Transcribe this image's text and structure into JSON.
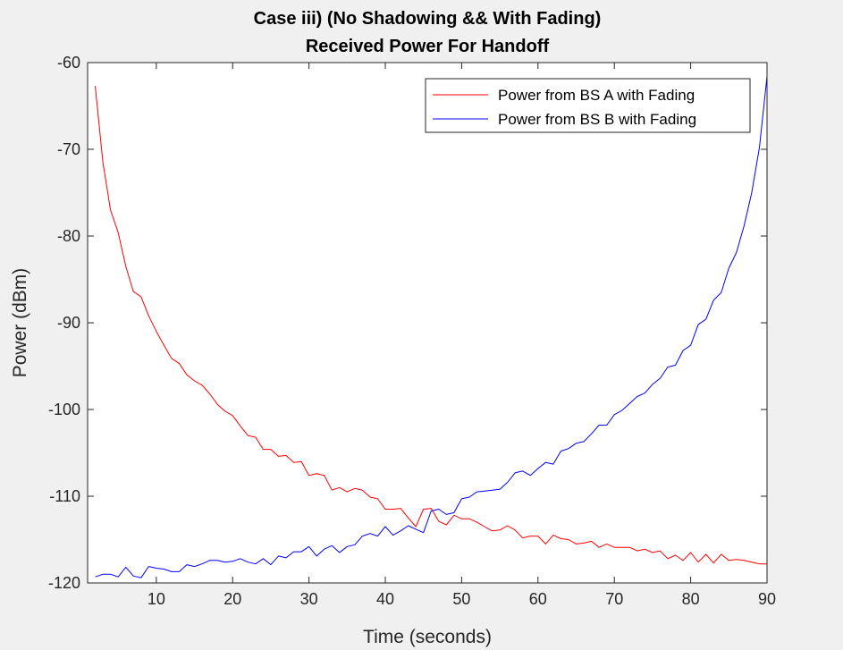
{
  "chart_data": {
    "type": "line",
    "title": [
      "Case iii) (No Shadowing && With Fading)",
      "Received Power For Handoff"
    ],
    "xlabel": "Time (seconds)",
    "ylabel": "Power (dBm)",
    "xlim": [
      1,
      90
    ],
    "ylim": [
      -120,
      -60
    ],
    "xticks": [
      10,
      20,
      30,
      40,
      50,
      60,
      70,
      80,
      90
    ],
    "yticks": [
      -60,
      -70,
      -80,
      -90,
      -100,
      -110,
      -120
    ],
    "grid": false,
    "legend_position": "top-right",
    "x": [
      2,
      3,
      4,
      5,
      6,
      7,
      8,
      9,
      10,
      11,
      12,
      13,
      14,
      15,
      16,
      17,
      18,
      19,
      20,
      21,
      22,
      23,
      24,
      25,
      26,
      27,
      28,
      29,
      30,
      31,
      32,
      33,
      34,
      35,
      36,
      37,
      38,
      39,
      40,
      41,
      42,
      43,
      44,
      45,
      46,
      47,
      48,
      49,
      50,
      51,
      52,
      53,
      54,
      55,
      56,
      57,
      58,
      59,
      60,
      61,
      62,
      63,
      64,
      65,
      66,
      67,
      68,
      69,
      70,
      71,
      72,
      73,
      74,
      75,
      76,
      77,
      78,
      79,
      80,
      81,
      82,
      83,
      84,
      85,
      86,
      87,
      88,
      89,
      90
    ],
    "series": [
      {
        "name": "Power from BS A with Fading",
        "color": "#ff0000",
        "values": [
          -62.7,
          -71.5,
          -77.0,
          -79.6,
          -83.5,
          -86.4,
          -87.0,
          -89.2,
          -91.0,
          -92.6,
          -94.1,
          -94.7,
          -96.0,
          -96.7,
          -97.2,
          -98.2,
          -99.4,
          -100.2,
          -100.7,
          -101.9,
          -103.0,
          -103.2,
          -104.6,
          -104.6,
          -105.4,
          -105.3,
          -106.1,
          -106.0,
          -107.6,
          -107.4,
          -107.6,
          -109.3,
          -109.0,
          -109.5,
          -109.1,
          -109.3,
          -110.1,
          -110.3,
          -111.5,
          -111.5,
          -111.4,
          -112.5,
          -113.5,
          -111.5,
          -111.4,
          -112.9,
          -113.3,
          -112.2,
          -112.6,
          -112.6,
          -113.0,
          -113.5,
          -114.0,
          -113.9,
          -113.4,
          -113.9,
          -114.8,
          -114.6,
          -114.6,
          -115.5,
          -114.5,
          -114.9,
          -115.0,
          -115.5,
          -115.4,
          -115.2,
          -115.9,
          -115.5,
          -115.9,
          -115.9,
          -115.9,
          -116.3,
          -116.1,
          -116.5,
          -116.3,
          -117.2,
          -116.8,
          -117.4,
          -116.5,
          -117.6,
          -116.7,
          -117.7,
          -116.7,
          -117.4,
          -117.3,
          -117.4,
          -117.6,
          -117.8,
          -117.8
        ]
      },
      {
        "name": "Power from BS B with Fading",
        "color": "#0000ff",
        "values": [
          -119.3,
          -119.0,
          -119.0,
          -119.3,
          -118.2,
          -119.2,
          -119.4,
          -118.1,
          -118.3,
          -118.4,
          -118.7,
          -118.7,
          -117.9,
          -118.1,
          -117.8,
          -117.4,
          -117.4,
          -117.6,
          -117.5,
          -117.2,
          -117.6,
          -117.8,
          -117.2,
          -117.9,
          -116.9,
          -117.1,
          -116.4,
          -116.4,
          -115.8,
          -116.9,
          -116.1,
          -115.7,
          -116.5,
          -115.8,
          -115.6,
          -114.6,
          -114.3,
          -114.6,
          -113.5,
          -114.5,
          -114.0,
          -113.4,
          -113.8,
          -114.2,
          -111.7,
          -111.5,
          -112.1,
          -111.9,
          -110.3,
          -110.1,
          -109.5,
          -109.4,
          -109.3,
          -109.2,
          -108.4,
          -107.3,
          -107.1,
          -107.6,
          -106.8,
          -106.1,
          -106.3,
          -104.8,
          -104.5,
          -103.9,
          -103.7,
          -102.8,
          -101.8,
          -101.8,
          -100.6,
          -100.1,
          -99.3,
          -98.5,
          -98.1,
          -97.1,
          -96.4,
          -95.1,
          -94.9,
          -93.2,
          -92.6,
          -90.2,
          -89.6,
          -87.4,
          -86.5,
          -83.7,
          -81.9,
          -78.8,
          -75.0,
          -69.8,
          -61.6
        ]
      }
    ]
  }
}
